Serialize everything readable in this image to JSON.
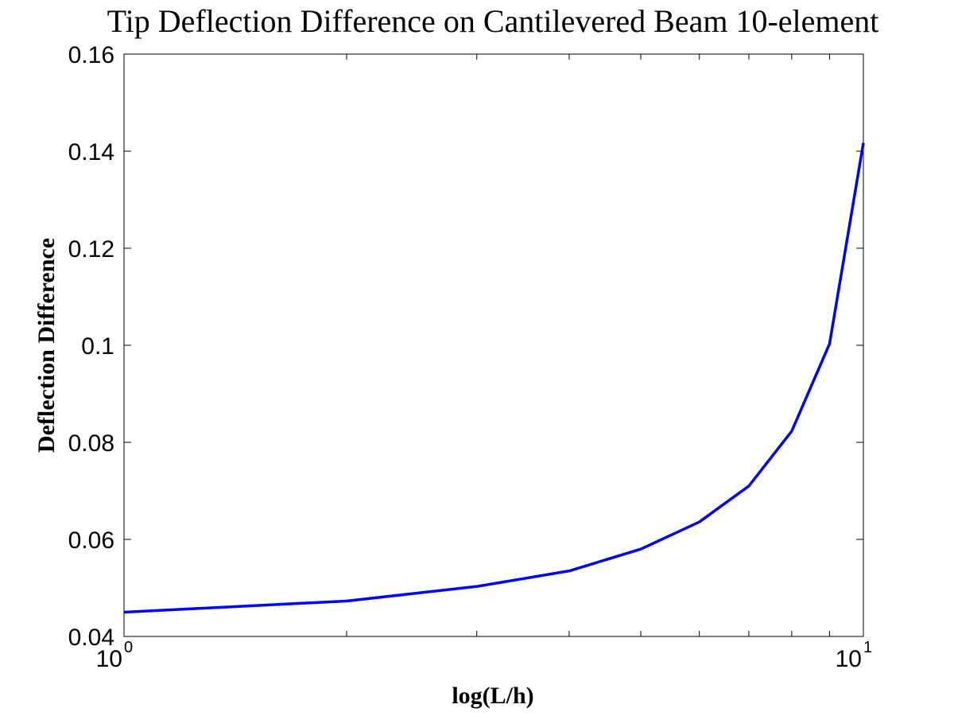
{
  "chart_data": {
    "type": "line",
    "title": "Tip Deflection Difference on Cantilevered Beam 10-element",
    "xlabel": "log(L/h)",
    "ylabel": "Deflection Difference",
    "xscale": "log",
    "xlim": [
      1,
      10
    ],
    "ylim": [
      0.04,
      0.16
    ],
    "grid": false,
    "legend": "none",
    "y_ticks": [
      "0.04",
      "0.06",
      "0.08",
      "0.1",
      "0.12",
      "0.14",
      "0.16"
    ],
    "x_ticks": [
      {
        "base": "10",
        "exp": "0"
      },
      {
        "base": "10",
        "exp": "1"
      }
    ],
    "series": [
      {
        "color": "#0000ff",
        "x": [
          1,
          2,
          3,
          4,
          5,
          6,
          7,
          8,
          9,
          10
        ],
        "y": [
          0.045,
          0.0473,
          0.0503,
          0.0535,
          0.058,
          0.0636,
          0.071,
          0.0823,
          0.1003,
          0.1417
        ]
      }
    ]
  }
}
